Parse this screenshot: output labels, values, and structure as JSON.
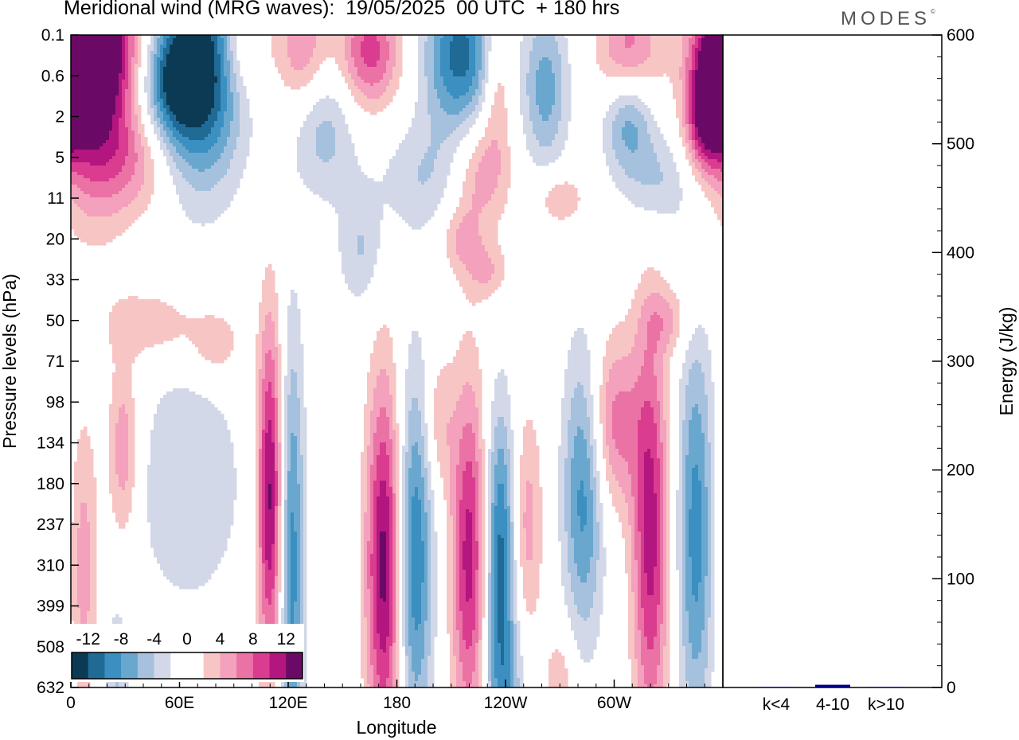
{
  "header": {
    "title": "Meridional wind (MRG waves):  19/05/2025  00 UTC  + 180 hrs",
    "brand": "MODES"
  },
  "chart_data": [
    {
      "type": "heatmap",
      "title": "Meridional wind (MRG waves):  19/05/2025  00 UTC  + 180 hrs",
      "xlabel": "Longitude",
      "ylabel": "Pressure levels (hPa)",
      "x_ticks": [
        "0",
        "60E",
        "120E",
        "180",
        "120W",
        "60W"
      ],
      "x_tick_values": [
        0,
        60,
        120,
        180,
        240,
        300
      ],
      "x_range": [
        0,
        360
      ],
      "y_ticks": [
        "0.1",
        "0.6",
        "2",
        "5",
        "11",
        "20",
        "33",
        "50",
        "71",
        "98",
        "134",
        "180",
        "237",
        "310",
        "399",
        "508",
        "632"
      ],
      "colorbar": {
        "labels": [
          "-12",
          "-8",
          "-4",
          "0",
          "4",
          "8",
          "12"
        ],
        "levels": [
          -14,
          -12,
          -10,
          -8,
          -6,
          -4,
          -2,
          0,
          2,
          4,
          6,
          8,
          10,
          12,
          14
        ],
        "colors": [
          "#0c3a55",
          "#1f6b96",
          "#3b8fc1",
          "#6aa7cf",
          "#a6c1dd",
          "#d3d8e8",
          "#ffffff",
          "#ffffff",
          "#f8c5c5",
          "#f3a1bc",
          "#eb72a4",
          "#da3c90",
          "#b3167f",
          "#6b0a66"
        ],
        "position": "bottom-left inset"
      },
      "blobs": [
        {
          "lon": 12,
          "level": 1.2,
          "v": 13,
          "w": 14,
          "h": 2.0
        },
        {
          "lon": 12,
          "level": 0.2,
          "v": 9,
          "w": 20,
          "h": 1.0
        },
        {
          "lon": 72,
          "level": 0.7,
          "v": -14,
          "w": 16,
          "h": 2.0
        },
        {
          "lon": 55,
          "level": 1.2,
          "v": -8,
          "w": 12,
          "h": 1.0
        },
        {
          "lon": 95,
          "level": 0.2,
          "v": 5,
          "w": 10,
          "h": 0.9
        },
        {
          "lon": 128,
          "level": 0.4,
          "v": 6,
          "w": 10,
          "h": 1.0
        },
        {
          "lon": 165,
          "level": 0.4,
          "v": 9,
          "w": 12,
          "h": 1.0
        },
        {
          "lon": 215,
          "level": 0.5,
          "v": -11,
          "w": 14,
          "h": 1.4
        },
        {
          "lon": 235,
          "level": 1.1,
          "v": 5,
          "w": 6,
          "h": 1.3
        },
        {
          "lon": 262,
          "level": 1.3,
          "v": -7,
          "w": 9,
          "h": 1.4
        },
        {
          "lon": 308,
          "level": 0.5,
          "v": 8,
          "w": 12,
          "h": 1.0
        },
        {
          "lon": 308,
          "level": 2.0,
          "v": -8,
          "w": 10,
          "h": 1.0
        },
        {
          "lon": 355,
          "level": 1.3,
          "v": 11,
          "w": 9,
          "h": 1.0
        },
        {
          "lon": 350,
          "level": 2.3,
          "v": 7,
          "w": 8,
          "h": 0.8
        },
        {
          "lon": 35,
          "level": 3.0,
          "v": 5,
          "w": 15,
          "h": 1.0
        },
        {
          "lon": 140,
          "level": 2.3,
          "v": -5,
          "w": 12,
          "h": 1.2
        },
        {
          "lon": 200,
          "level": 3.5,
          "v": -4,
          "w": 22,
          "h": 1.0
        },
        {
          "lon": 225,
          "level": 3.4,
          "v": 7,
          "w": 12,
          "h": 1.0
        },
        {
          "lon": 270,
          "level": 4.0,
          "v": 4,
          "w": 10,
          "h": 0.5
        },
        {
          "lon": 325,
          "level": 3.6,
          "v": -4,
          "w": 12,
          "h": 0.8
        },
        {
          "lon": 160,
          "level": 5.3,
          "v": -4,
          "w": 9,
          "h": 1.0
        },
        {
          "lon": 215,
          "level": 5.0,
          "v": 4,
          "w": 8,
          "h": 0.6
        },
        {
          "lon": 230,
          "level": 5.8,
          "v": 4,
          "w": 8,
          "h": 0.5
        },
        {
          "lon": 45,
          "level": 7.1,
          "v": 4,
          "w": 18,
          "h": 0.6
        },
        {
          "lon": 80,
          "level": 7.6,
          "v": 4,
          "w": 10,
          "h": 0.6
        },
        {
          "lon": 330,
          "level": 7.0,
          "v": 4,
          "w": 10,
          "h": 0.6
        },
        {
          "lon": 7,
          "level": 13.0,
          "v": 5,
          "w": 6,
          "h": 2.6
        },
        {
          "lon": 29,
          "level": 10.2,
          "v": 6,
          "w": 6,
          "h": 1.6
        },
        {
          "lon": 65,
          "level": 11.0,
          "v": -4,
          "w": 22,
          "h": 2.2
        },
        {
          "lon": 110,
          "level": 11.3,
          "v": 13,
          "w": 5,
          "h": 3.0
        },
        {
          "lon": 122,
          "level": 13.0,
          "v": -9,
          "w": 5,
          "h": 4.0
        },
        {
          "lon": 173,
          "level": 13.0,
          "v": 13,
          "w": 7,
          "h": 3.2
        },
        {
          "lon": 190,
          "level": 12.8,
          "v": -10,
          "w": 7,
          "h": 3.2
        },
        {
          "lon": 203,
          "level": 9.5,
          "v": 4,
          "w": 6,
          "h": 1.2
        },
        {
          "lon": 220,
          "level": 12.8,
          "v": 11,
          "w": 7,
          "h": 3.0
        },
        {
          "lon": 237,
          "level": 12.7,
          "v": -11,
          "w": 6,
          "h": 2.5
        },
        {
          "lon": 252,
          "level": 12.0,
          "v": 5,
          "w": 6,
          "h": 2.0
        },
        {
          "lon": 283,
          "level": 11.2,
          "v": -9,
          "w": 8,
          "h": 2.5
        },
        {
          "lon": 300,
          "level": 9.5,
          "v": 7,
          "w": 10,
          "h": 1.5
        },
        {
          "lon": 320,
          "level": 12.3,
          "v": 11,
          "w": 7,
          "h": 3.5
        },
        {
          "lon": 345,
          "level": 12.2,
          "v": -9,
          "w": 7,
          "h": 3.5
        },
        {
          "lon": 25,
          "level": 16.0,
          "v": -4,
          "w": 6,
          "h": 1.5
        },
        {
          "lon": 240,
          "level": 16.0,
          "v": -5,
          "w": 8,
          "h": 1.3
        },
        {
          "lon": 270,
          "level": 16.0,
          "v": 4,
          "w": 6,
          "h": 1.0
        }
      ]
    },
    {
      "type": "bar",
      "ylabel": "Energy (J/kg)",
      "ylim": [
        0,
        600
      ],
      "y_ticks": [
        "0",
        "100",
        "200",
        "300",
        "400",
        "500",
        "600"
      ],
      "categories": [
        "k<4",
        "4-10",
        "k>10"
      ],
      "values": [
        0.5,
        2.5,
        0.5
      ],
      "bar_color": "#00008b"
    }
  ]
}
